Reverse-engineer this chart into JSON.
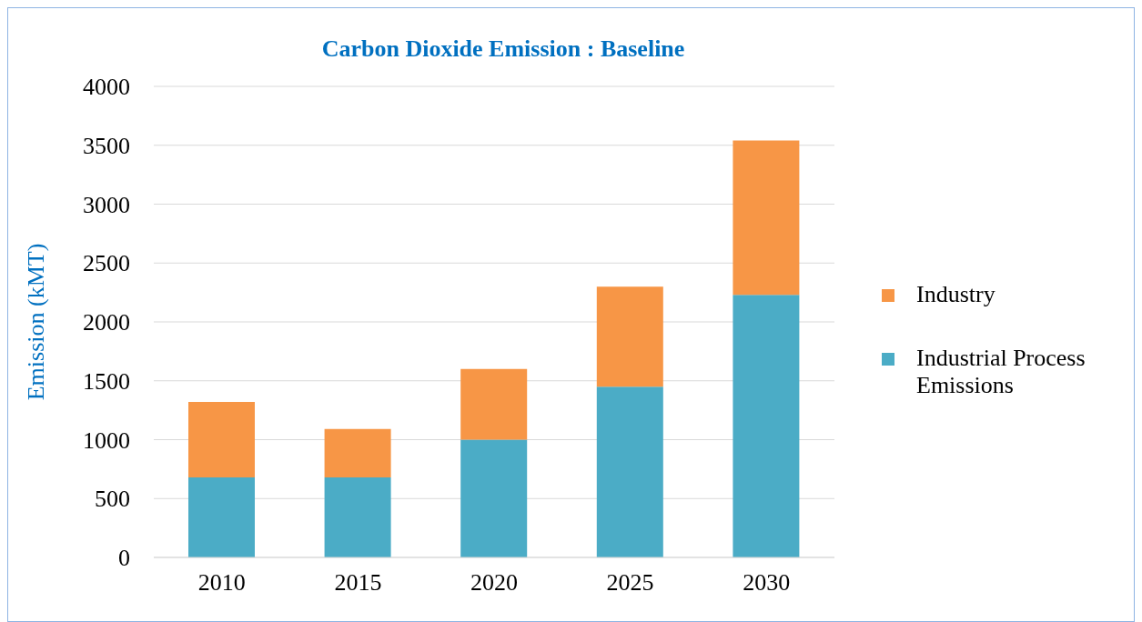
{
  "chart_data": {
    "type": "bar",
    "title": "Carbon Dioxide Emission : Baseline",
    "ylabel": "Emission (kMT)",
    "categories": [
      "2010",
      "2015",
      "2020",
      "2025",
      "2030"
    ],
    "stacked": true,
    "series": [
      {
        "name": "Industrial Process Emissions",
        "color": "#4bacc6",
        "values": [
          680,
          680,
          1000,
          1450,
          2230
        ]
      },
      {
        "name": "Industry",
        "color": "#f79646",
        "values": [
          640,
          410,
          600,
          850,
          1310
        ]
      }
    ],
    "ylim": [
      0,
      4000
    ],
    "yticks": [
      0,
      500,
      1000,
      1500,
      2000,
      2500,
      3000,
      3500,
      4000
    ],
    "grid": "y",
    "legend": "right"
  }
}
